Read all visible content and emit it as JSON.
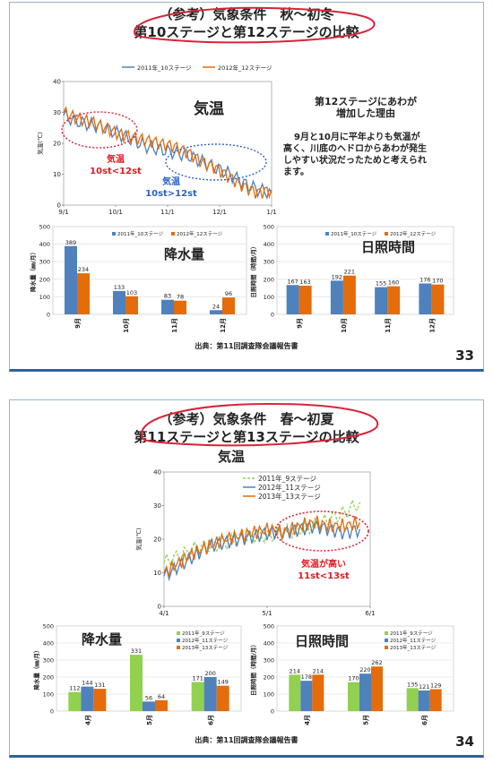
{
  "slides": [
    {
      "title1": "（参考）気象条件　秋～初冬",
      "title2": "第10ステージと第12ステージの比較",
      "page": "33",
      "source": "出典：第11回調査隊会議報告書",
      "temp": {
        "big_label": "気温",
        "legend": [
          "2011年_10ステージ",
          "2012年_12ステージ"
        ],
        "ylabel": "気温(℃)",
        "yticks": [
          "0",
          "10",
          "20",
          "30",
          "40"
        ],
        "xticks": [
          "9/1",
          "10/1",
          "11/1",
          "12/1",
          "1/1"
        ],
        "ann1": [
          "気温",
          "10st<12st"
        ],
        "ann2": [
          "気温",
          "10st>12st"
        ]
      },
      "note": {
        "heading1": "第12ステージにあわが",
        "heading2": "増加した理由",
        "body": [
          "9月と10月に平年よりも気温が",
          "高く、川底のヘドロからあわが発生",
          "しやすい状況だったためと考えられ",
          "ます。"
        ]
      },
      "rain": {
        "big_label": "降水量",
        "legend": [
          "2011年_10ステージ",
          "2012年_12ステージ"
        ],
        "ylabel": "降水量（㎜/月）",
        "yticks": [
          "0",
          "100",
          "200",
          "300",
          "400",
          "500"
        ],
        "categories": [
          "9月",
          "10月",
          "11月",
          "12月"
        ]
      },
      "sun": {
        "big_label": "日照時間",
        "legend": [
          "2011年_10ステージ",
          "2012年_12ステージ"
        ],
        "ylabel": "日照時間（時間/月）",
        "yticks": [
          "0",
          "100",
          "200",
          "300",
          "400",
          "500"
        ],
        "categories": [
          "9月",
          "10月",
          "11月",
          "12月"
        ]
      }
    },
    {
      "title1": "（参考）気象条件　春～初夏",
      "title2": "第11ステージと第13ステージの比較",
      "page": "34",
      "source": "出典：第11回調査隊会議報告書",
      "temp": {
        "big_label": "気温",
        "legend": [
          "2011年_9ステージ",
          "2012年_11ステージ",
          "2013年_13ステージ"
        ],
        "ylabel": "気温(℃)",
        "yticks": [
          "0",
          "10",
          "20",
          "30",
          "40"
        ],
        "xticks": [
          "4/1",
          "5/1",
          "6/1"
        ],
        "ann1": [
          "気温が高い",
          "11st<13st"
        ]
      },
      "rain": {
        "big_label": "降水量",
        "legend": [
          "2011年_9ステージ",
          "2012年_11ステージ",
          "2013年_13ステージ"
        ],
        "ylabel": "降水量（㎜/月）",
        "yticks": [
          "0",
          "100",
          "200",
          "300",
          "400",
          "500"
        ],
        "categories": [
          "4月",
          "5月",
          "6月"
        ]
      },
      "sun": {
        "big_label": "日照時間",
        "legend": [
          "2011年_9ステージ",
          "2012年_11ステージ",
          "2013年_13ステージ"
        ],
        "ylabel": "日照時間（時間/月）",
        "yticks": [
          "0",
          "100",
          "200",
          "300",
          "400",
          "500"
        ],
        "categories": [
          "4月",
          "5月",
          "6月"
        ]
      }
    }
  ],
  "colors": {
    "blue": "#4f81bd",
    "orange": "#e46c0a",
    "green": "#92d050",
    "red": "#e01b22",
    "circle_red": "#d8243a",
    "dot_blue": "#2a63c8"
  },
  "chart_data": [
    {
      "type": "line",
      "id": "slide33-temp",
      "ylim": [
        0,
        40
      ],
      "series": [
        {
          "name": "2011年_10ステージ",
          "values": [
            29,
            27,
            26,
            25,
            23,
            21,
            19,
            18,
            17,
            16,
            14,
            12,
            10,
            7,
            5,
            4
          ]
        },
        {
          "name": "2012年_12ステージ",
          "values": [
            30,
            28,
            27,
            25,
            23,
            22,
            21,
            20,
            19,
            17,
            14,
            12,
            9,
            6,
            4,
            5
          ]
        }
      ]
    },
    {
      "type": "bar",
      "id": "slide33-rain",
      "categories": [
        "9月",
        "10月",
        "11月",
        "12月"
      ],
      "ylim": [
        0,
        500
      ],
      "series": [
        {
          "name": "2011年_10ステージ",
          "values": [
            389,
            133,
            83,
            24
          ]
        },
        {
          "name": "2012年_12ステージ",
          "values": [
            234,
            103,
            78,
            96
          ]
        }
      ]
    },
    {
      "type": "bar",
      "id": "slide33-sun",
      "categories": [
        "9月",
        "10月",
        "11月",
        "12月"
      ],
      "ylim": [
        0,
        500
      ],
      "series": [
        {
          "name": "2011年_10ステージ",
          "values": [
            167,
            192,
            155,
            176
          ]
        },
        {
          "name": "2012年_12ステージ",
          "values": [
            163,
            221,
            160,
            170
          ]
        }
      ]
    },
    {
      "type": "line",
      "id": "slide34-temp",
      "ylim": [
        0,
        40
      ],
      "series": [
        {
          "name": "2011年_9ステージ",
          "values": [
            13,
            15,
            17,
            18,
            19,
            20,
            21,
            21,
            22,
            23,
            24,
            26,
            28,
            31
          ]
        },
        {
          "name": "2012年_11ステージ",
          "values": [
            9,
            12,
            15,
            18,
            19,
            20,
            21,
            22,
            22,
            23,
            24,
            23,
            22,
            23
          ]
        },
        {
          "name": "2013年_13ステージ",
          "values": [
            10,
            13,
            16,
            18,
            20,
            21,
            22,
            23,
            22,
            24,
            25,
            24,
            24,
            25
          ]
        }
      ]
    },
    {
      "type": "bar",
      "id": "slide34-rain",
      "categories": [
        "4月",
        "5月",
        "6月"
      ],
      "ylim": [
        0,
        500
      ],
      "series": [
        {
          "name": "2011年_9ステージ",
          "values": [
            112,
            331,
            171
          ]
        },
        {
          "name": "2012年_11ステージ",
          "values": [
            144,
            56,
            200
          ]
        },
        {
          "name": "2013年_13ステージ",
          "values": [
            131,
            64,
            149
          ]
        }
      ]
    },
    {
      "type": "bar",
      "id": "slide34-sun",
      "categories": [
        "4月",
        "5月",
        "6月"
      ],
      "ylim": [
        0,
        500
      ],
      "series": [
        {
          "name": "2011年_9ステージ",
          "values": [
            214,
            170,
            135
          ]
        },
        {
          "name": "2012年_11ステージ",
          "values": [
            178,
            220,
            121
          ]
        },
        {
          "name": "2013年_13ステージ",
          "values": [
            214,
            262,
            129
          ]
        }
      ]
    }
  ]
}
